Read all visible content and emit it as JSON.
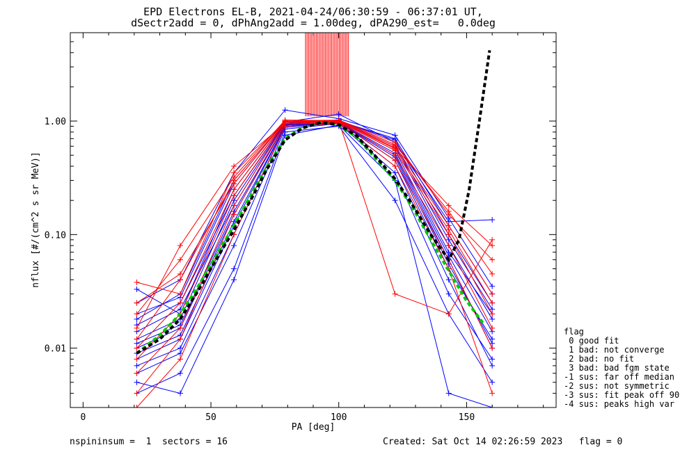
{
  "header": {
    "title_line1": "EPD Electrons EL-B, 2021-04-24/06:30:59 - 06:37:01 UT,",
    "title_line2": "dSectr2add = 0, dPhAng2add = 1.00deg, dPA290_est=   0.0deg"
  },
  "footer": {
    "left": "nspininsum =  1  sectors = 16",
    "right": "Created: Sat Oct 14 02:26:59 2023   flag = 0"
  },
  "legend": {
    "title": "flag",
    "items": [
      " 0 good fit",
      " 1 bad: not converge",
      " 2 bad: no fit",
      " 3 bad: bad fgm state",
      "-1 sus: far off median",
      "-2 sus: not symmetric",
      "-3 sus: fit peak off 90",
      "-4 sus: peaks high var"
    ]
  },
  "chart_data": {
    "type": "line",
    "xlabel": "PA [deg]",
    "ylabel": "nflux [#/(cm^2 s sr MeV)]",
    "xlim": [
      -5,
      185
    ],
    "ylim": [
      0.003,
      6
    ],
    "yscale": "log",
    "xticks": [
      0,
      50,
      100,
      150
    ],
    "yticks": [
      0.01,
      0.1,
      1.0
    ],
    "ytick_labels": [
      "0.01",
      "0.10",
      "1.00"
    ],
    "x_tick_labels": [
      "0",
      "50",
      "100",
      "150"
    ],
    "pa_bins": [
      21,
      38,
      59,
      79,
      100,
      122,
      143,
      160
    ],
    "series": [
      {
        "color": "#0000ff",
        "marker": "+",
        "values": [
          0.012,
          0.018,
          0.2,
          0.95,
          1.0,
          0.6,
          0.08,
          0.018
        ]
      },
      {
        "color": "#0000ff",
        "marker": "+",
        "values": [
          0.008,
          0.012,
          0.12,
          0.9,
          0.98,
          0.45,
          0.05,
          0.012
        ]
      },
      {
        "color": "#0000ff",
        "marker": "+",
        "values": [
          0.018,
          0.03,
          0.3,
          1.0,
          1.0,
          0.7,
          0.12,
          0.03
        ]
      },
      {
        "color": "#0000ff",
        "marker": "+",
        "values": [
          0.006,
          0.009,
          0.08,
          0.85,
          0.95,
          0.35,
          0.03,
          0.008
        ]
      },
      {
        "color": "#0000ff",
        "marker": "+",
        "values": [
          0.025,
          0.04,
          0.35,
          1.25,
          1.05,
          0.75,
          0.14,
          0.035
        ]
      },
      {
        "color": "#0000ff",
        "marker": "+",
        "values": [
          0.01,
          0.015,
          0.15,
          0.92,
          0.97,
          0.5,
          0.06,
          0.01
        ]
      },
      {
        "color": "#0000ff",
        "marker": "+",
        "values": [
          0.004,
          0.006,
          0.05,
          0.8,
          0.9,
          0.2,
          0.02,
          0.005
        ]
      },
      {
        "color": "#0000ff",
        "marker": "+",
        "values": [
          0.033,
          0.02,
          0.25,
          0.98,
          1.15,
          0.65,
          0.13,
          0.135
        ]
      },
      {
        "color": "#0000ff",
        "marker": "+",
        "values": [
          0.014,
          0.022,
          0.18,
          0.95,
          0.99,
          0.55,
          0.07,
          0.02
        ]
      },
      {
        "color": "#0000ff",
        "marker": "+",
        "values": [
          0.007,
          0.01,
          0.1,
          0.88,
          0.96,
          0.4,
          0.04,
          0.007
        ]
      },
      {
        "color": "#0000ff",
        "marker": "+",
        "values": [
          0.02,
          0.028,
          0.28,
          1.0,
          1.0,
          0.68,
          0.1,
          0.025
        ]
      },
      {
        "color": "#0000ff",
        "marker": "+",
        "values": [
          0.005,
          0.004,
          0.04,
          0.75,
          0.92,
          0.3,
          0.004,
          0.003
        ]
      },
      {
        "color": "#0000ff",
        "marker": "+",
        "values": [
          0.016,
          0.025,
          0.22,
          0.96,
          1.02,
          0.62,
          0.09,
          0.022
        ]
      },
      {
        "color": "#0000ff",
        "marker": "+",
        "values": [
          0.011,
          0.016,
          0.16,
          0.93,
          0.98,
          0.52,
          0.065,
          0.014
        ]
      },
      {
        "color": "#0000ff",
        "marker": "+",
        "values": [
          0.009,
          0.013,
          0.13,
          0.9,
          0.97,
          0.48,
          0.055,
          0.011
        ]
      },
      {
        "color": "#ff0000",
        "marker": "+",
        "values": [
          0.038,
          0.03,
          0.35,
          1.0,
          1.02,
          0.65,
          0.15,
          0.06
        ]
      },
      {
        "color": "#ff0000",
        "marker": "+",
        "values": [
          0.015,
          0.08,
          0.4,
          0.95,
          1.0,
          0.58,
          0.18,
          0.08
        ]
      },
      {
        "color": "#ff0000",
        "marker": "+",
        "values": [
          0.012,
          0.04,
          0.3,
          1.0,
          1.0,
          0.6,
          0.12,
          0.03
        ]
      },
      {
        "color": "#ff0000",
        "marker": "+",
        "values": [
          0.008,
          0.02,
          0.22,
          0.98,
          0.99,
          0.55,
          0.1,
          0.02
        ]
      },
      {
        "color": "#ff0000",
        "marker": "+",
        "values": [
          0.02,
          0.06,
          0.32,
          1.02,
          1.01,
          0.62,
          0.16,
          0.045
        ]
      },
      {
        "color": "#ff0000",
        "marker": "+",
        "values": [
          0.006,
          0.015,
          0.18,
          0.96,
          0.98,
          0.5,
          0.08,
          0.015
        ]
      },
      {
        "color": "#ff0000",
        "marker": "+",
        "values": [
          0.01,
          0.025,
          0.25,
          0.99,
          1.0,
          0.57,
          0.11,
          0.025
        ]
      },
      {
        "color": "#ff0000",
        "marker": "+",
        "values": [
          0.004,
          0.012,
          0.15,
          0.94,
          0.97,
          0.45,
          0.06,
          0.01
        ]
      },
      {
        "color": "#ff0000",
        "marker": "+",
        "values": [
          0.025,
          0.045,
          0.28,
          1.0,
          1.0,
          0.03,
          0.02,
          0.09
        ]
      },
      {
        "color": "#ff0000",
        "marker": "+",
        "values": [
          0.003,
          0.008,
          0.1,
          0.9,
          0.95,
          0.4,
          0.05,
          0.004
        ]
      }
    ],
    "overlays": [
      {
        "color": "#00cc00",
        "style": "dashed",
        "x": [
          21,
          30,
          38,
          45,
          52,
          59,
          66,
          72,
          79,
          86,
          93,
          100,
          107,
          114,
          122,
          129,
          136,
          143,
          150,
          157
        ],
        "y": [
          0.009,
          0.013,
          0.02,
          0.035,
          0.065,
          0.12,
          0.23,
          0.4,
          0.7,
          0.88,
          0.97,
          0.92,
          0.72,
          0.48,
          0.3,
          0.17,
          0.09,
          0.048,
          0.026,
          0.016
        ]
      },
      {
        "color": "#000000",
        "style": "dashed",
        "x": [
          21,
          30,
          38,
          45,
          52,
          59,
          66,
          72,
          79,
          86,
          93,
          100,
          107,
          114,
          122,
          129,
          136,
          143,
          147,
          151,
          155,
          159
        ],
        "y": [
          0.009,
          0.012,
          0.018,
          0.032,
          0.06,
          0.11,
          0.21,
          0.38,
          0.68,
          0.87,
          0.97,
          0.93,
          0.74,
          0.5,
          0.31,
          0.18,
          0.1,
          0.06,
          0.09,
          0.25,
          1.0,
          4.2
        ]
      }
    ]
  }
}
